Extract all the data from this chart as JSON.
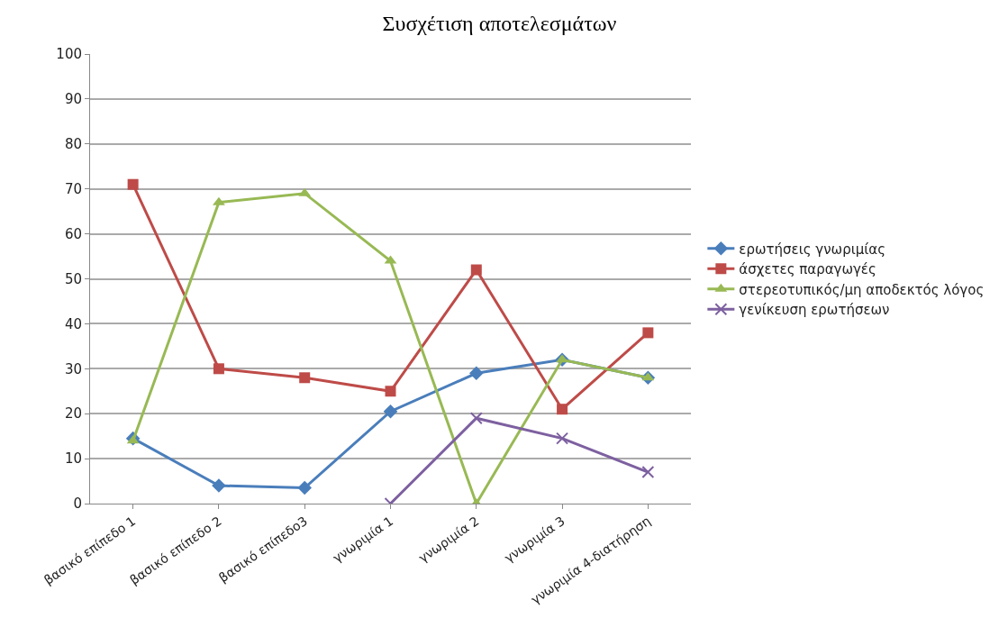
{
  "chart_data": {
    "type": "line",
    "title": "Συσχέτιση αποτελεσμάτων",
    "categories": [
      "βασικό επίπεδο 1",
      "βασικό επίπεδο 2",
      "βασικό επίπεδο3",
      "γνωριμία 1",
      "γνωριμία 2",
      "γνωριμία 3",
      "γνωριμία 4-διατήρηση"
    ],
    "series": [
      {
        "name": "ερωτήσεις γνωριμίας",
        "color": "#4a7ebb",
        "marker": "diamond",
        "values": [
          14.5,
          4,
          3.5,
          20.5,
          29,
          32,
          28
        ]
      },
      {
        "name": "άσχετες παραγωγές",
        "color": "#be4b48",
        "marker": "square",
        "values": [
          71,
          30,
          28,
          25,
          52,
          21,
          38
        ]
      },
      {
        "name": "στερεοτυπικός/μη αποδεκτός λόγος",
        "color": "#98b954",
        "marker": "triangle",
        "values": [
          14,
          67,
          69,
          54,
          0,
          32,
          28
        ]
      },
      {
        "name": "γενίκευση ερωτήσεων",
        "color": "#7d60a0",
        "marker": "cross",
        "values": [
          null,
          null,
          null,
          0,
          19,
          14.5,
          7
        ]
      }
    ],
    "ylim": [
      0,
      100
    ],
    "yticks": [
      0,
      10,
      20,
      30,
      40,
      50,
      60,
      70,
      80,
      90,
      100
    ],
    "grid": "y",
    "legend": "right",
    "line_style": "solid"
  }
}
